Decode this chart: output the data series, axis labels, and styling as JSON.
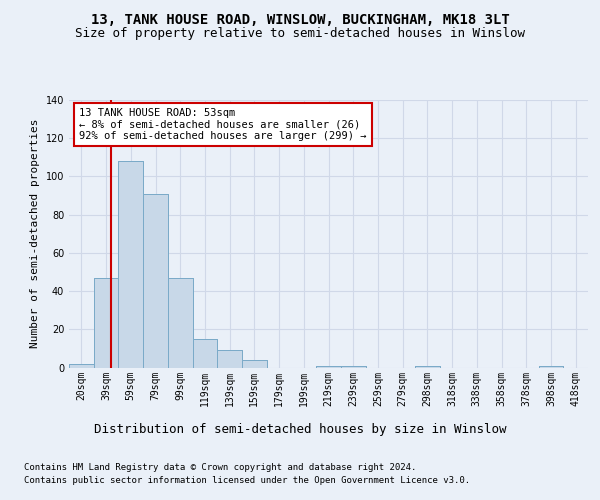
{
  "title1": "13, TANK HOUSE ROAD, WINSLOW, BUCKINGHAM, MK18 3LT",
  "title2": "Size of property relative to semi-detached houses in Winslow",
  "xlabel": "Distribution of semi-detached houses by size in Winslow",
  "ylabel": "Number of semi-detached properties",
  "footnote1": "Contains HM Land Registry data © Crown copyright and database right 2024.",
  "footnote2": "Contains public sector information licensed under the Open Government Licence v3.0.",
  "bar_categories": [
    "20sqm",
    "39sqm",
    "59sqm",
    "79sqm",
    "99sqm",
    "119sqm",
    "139sqm",
    "159sqm",
    "179sqm",
    "199sqm",
    "219sqm",
    "239sqm",
    "259sqm",
    "279sqm",
    "298sqm",
    "318sqm",
    "338sqm",
    "358sqm",
    "378sqm",
    "398sqm",
    "418sqm"
  ],
  "bar_values": [
    2,
    47,
    108,
    91,
    47,
    15,
    9,
    4,
    0,
    0,
    1,
    1,
    0,
    0,
    1,
    0,
    0,
    0,
    0,
    1,
    0
  ],
  "bar_color": "#c8d8e8",
  "bar_edgecolor": "#7aaac8",
  "ylim": [
    0,
    140
  ],
  "yticks": [
    0,
    20,
    40,
    60,
    80,
    100,
    120,
    140
  ],
  "property_label": "13 TANK HOUSE ROAD: 53sqm",
  "pct_smaller": 8,
  "pct_smaller_n": 26,
  "pct_larger": 92,
  "pct_larger_n": 299,
  "annotation_box_color": "#ffffff",
  "annotation_box_edgecolor": "#cc0000",
  "redline_color": "#cc0000",
  "grid_color": "#d0d8e8",
  "background_color": "#eaf0f8",
  "plot_background": "#eaf0f8",
  "title1_fontsize": 10,
  "title2_fontsize": 9,
  "xlabel_fontsize": 9,
  "ylabel_fontsize": 8,
  "annotation_fontsize": 7.5,
  "tick_fontsize": 7,
  "footnote_fontsize": 6.5,
  "redline_x": 1.2
}
